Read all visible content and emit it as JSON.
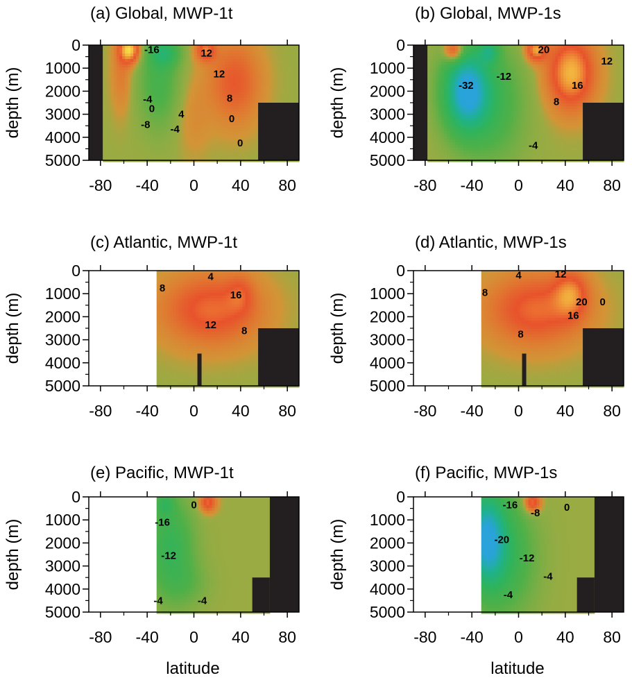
{
  "colors": {
    "land": "#231f20",
    "background": "#ffffff",
    "scale": [
      {
        "v": -32,
        "c": "#29a3d9"
      },
      {
        "v": -24,
        "c": "#1fb28a"
      },
      {
        "v": -16,
        "c": "#2fb35b"
      },
      {
        "v": -8,
        "c": "#4fb048"
      },
      {
        "v": -2,
        "c": "#86ad44"
      },
      {
        "v": 0,
        "c": "#9aab43"
      },
      {
        "v": 2,
        "c": "#d39436"
      },
      {
        "v": 6,
        "c": "#df7b31"
      },
      {
        "v": 12,
        "c": "#e8522c"
      },
      {
        "v": 18,
        "c": "#f0a03a"
      },
      {
        "v": 24,
        "c": "#f7e34a"
      }
    ]
  },
  "shared": {
    "xlabel": "latitude",
    "ylabel": "depth (m)"
  },
  "chart_data": [
    {
      "type": "heatmap",
      "title": "(a) Global, MWP-1t",
      "xlim": [
        -90,
        90
      ],
      "ylim": [
        0,
        5000
      ],
      "xticks": [
        "-80",
        "-40",
        "0",
        "40",
        "80"
      ],
      "yticks": [
        "0",
        "1000",
        "2000",
        "3000",
        "4000",
        "5000"
      ],
      "contour_labels": [
        "-16",
        "12",
        "12",
        "-4",
        "-8",
        "0",
        "4",
        "-4",
        "8",
        "0",
        "0"
      ],
      "ocean_range": [
        -78,
        90
      ],
      "bottom_rise": {
        "lat_start": 55,
        "depth_top": 2500
      },
      "features": [
        {
          "lat": -55,
          "depth": 200,
          "value": 22,
          "sl": 6,
          "sd": 400
        },
        {
          "lat": -62,
          "depth": 1200,
          "value": 6,
          "sl": 6,
          "sd": 1200
        },
        {
          "lat": -30,
          "depth": 1600,
          "value": -10,
          "sl": 12,
          "sd": 1400
        },
        {
          "lat": -25,
          "depth": 300,
          "value": -14,
          "sl": 9,
          "sd": 450
        },
        {
          "lat": 10,
          "depth": 200,
          "value": 14,
          "sl": 6,
          "sd": 350
        },
        {
          "lat": 35,
          "depth": 1600,
          "value": 11,
          "sl": 16,
          "sd": 1300
        },
        {
          "lat": 0,
          "depth": 3200,
          "value": 3,
          "sl": 10,
          "sd": 1200
        }
      ]
    },
    {
      "type": "heatmap",
      "title": "(b) Global, MWP-1s",
      "xlim": [
        -90,
        90
      ],
      "ylim": [
        0,
        5000
      ],
      "xticks": [
        "-80",
        "-40",
        "0",
        "40",
        "80"
      ],
      "yticks": [
        "0",
        "1000",
        "2000",
        "3000",
        "4000",
        "5000"
      ],
      "contour_labels": [
        "-32",
        "-12",
        "20",
        "12",
        "16",
        "8",
        "-4"
      ],
      "ocean_range": [
        -78,
        90
      ],
      "bottom_rise": {
        "lat_start": 55,
        "depth_top": 2500
      },
      "features": [
        {
          "lat": -45,
          "depth": 2000,
          "value": -32,
          "sl": 14,
          "sd": 1300
        },
        {
          "lat": -20,
          "depth": 2500,
          "value": -10,
          "sl": 18,
          "sd": 1800
        },
        {
          "lat": -55,
          "depth": 250,
          "value": 18,
          "sl": 6,
          "sd": 350
        },
        {
          "lat": -25,
          "depth": 250,
          "value": -14,
          "sl": 6,
          "sd": 350
        },
        {
          "lat": 15,
          "depth": 200,
          "value": 18,
          "sl": 6,
          "sd": 350
        },
        {
          "lat": 45,
          "depth": 1200,
          "value": 20,
          "sl": 14,
          "sd": 1100
        }
      ]
    },
    {
      "type": "heatmap",
      "title": "(c) Atlantic, MWP-1t",
      "xlim": [
        -90,
        90
      ],
      "ylim": [
        0,
        5000
      ],
      "xticks": [
        "-80",
        "-40",
        "0",
        "40",
        "80"
      ],
      "yticks": [
        "0",
        "1000",
        "2000",
        "3000",
        "4000",
        "5000"
      ],
      "contour_labels": [
        "4",
        "8",
        "16",
        "12",
        "8"
      ],
      "ocean_range": [
        -32,
        90
      ],
      "bottom_rise": {
        "lat_start": 55,
        "depth_top": 2500
      },
      "features": [
        {
          "lat": 15,
          "depth": 1700,
          "value": 14,
          "sl": 30,
          "sd": 1100
        },
        {
          "lat": 40,
          "depth": 1000,
          "value": 6,
          "sl": 8,
          "sd": 600
        }
      ]
    },
    {
      "type": "heatmap",
      "title": "(d) Atlantic, MWP-1s",
      "xlim": [
        -90,
        90
      ],
      "ylim": [
        0,
        5000
      ],
      "xticks": [
        "-80",
        "-40",
        "0",
        "40",
        "80"
      ],
      "yticks": [
        "0",
        "1000",
        "2000",
        "3000",
        "4000",
        "5000"
      ],
      "contour_labels": [
        "8",
        "4",
        "12",
        "16",
        "20",
        "8",
        "0"
      ],
      "ocean_range": [
        -32,
        90
      ],
      "bottom_rise": {
        "lat_start": 55,
        "depth_top": 2500
      },
      "features": [
        {
          "lat": 15,
          "depth": 1700,
          "value": 14,
          "sl": 30,
          "sd": 1100
        },
        {
          "lat": 45,
          "depth": 1000,
          "value": 12,
          "sl": 10,
          "sd": 700
        }
      ]
    },
    {
      "type": "heatmap",
      "title": "(e) Pacific, MWP-1t",
      "xlim": [
        -90,
        90
      ],
      "ylim": [
        0,
        5000
      ],
      "xticks": [
        "-80",
        "-40",
        "0",
        "40",
        "80"
      ],
      "yticks": [
        "0",
        "1000",
        "2000",
        "3000",
        "4000",
        "5000"
      ],
      "contour_labels": [
        "-16",
        "-12",
        "-4",
        "-4",
        "0"
      ],
      "ocean_range": [
        -32,
        65
      ],
      "bottom_rise": {
        "lat_start": 50,
        "depth_top": 3500
      },
      "features": [
        {
          "lat": -20,
          "depth": 2200,
          "value": -14,
          "sl": 14,
          "sd": 1500
        },
        {
          "lat": -25,
          "depth": 300,
          "value": -10,
          "sl": 6,
          "sd": 400
        },
        {
          "lat": 12,
          "depth": 250,
          "value": 14,
          "sl": 5,
          "sd": 300
        },
        {
          "lat": -5,
          "depth": 3800,
          "value": -4,
          "sl": 14,
          "sd": 700
        }
      ]
    },
    {
      "type": "heatmap",
      "title": "(f) Pacific, MWP-1s",
      "xlim": [
        -90,
        90
      ],
      "ylim": [
        0,
        5000
      ],
      "xticks": [
        "-80",
        "-40",
        "0",
        "40",
        "80"
      ],
      "yticks": [
        "0",
        "1000",
        "2000",
        "3000",
        "4000",
        "5000"
      ],
      "contour_labels": [
        "-16",
        "-8",
        "-20",
        "-12",
        "-4",
        "-4",
        "0"
      ],
      "ocean_range": [
        -32,
        65
      ],
      "bottom_rise": {
        "lat_start": 50,
        "depth_top": 3500
      },
      "features": [
        {
          "lat": -28,
          "depth": 1800,
          "value": -28,
          "sl": 12,
          "sd": 1500
        },
        {
          "lat": -10,
          "depth": 2600,
          "value": -12,
          "sl": 18,
          "sd": 1800
        },
        {
          "lat": 12,
          "depth": 250,
          "value": 16,
          "sl": 5,
          "sd": 300
        }
      ]
    }
  ]
}
